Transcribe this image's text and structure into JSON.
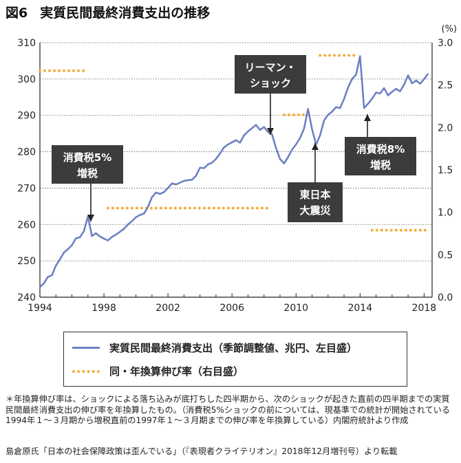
{
  "figure": {
    "number": "図6",
    "title": "実質民間最終消費支出の推移"
  },
  "legend": {
    "items": [
      {
        "label": "実質民間最終消費支出（季節調整値、兆円、左目盛）",
        "color": "#6e80c4",
        "style": "line"
      },
      {
        "label": "同・年換算伸び率（右目盛）",
        "color": "#f3ad3c",
        "style": "dotted"
      }
    ]
  },
  "note": "＊年換算伸び率は、ショックによる落ち込みが底打ちした四半期から、次のショックが起きた直前の四半期までの実質民間最終消費支出の伸び率を年換算したもの。（消費税5%ショックの前については、現基準での統計が開始されている1994年１～３月期から増税直前の1997年１～３月期までの伸び率を年換算している）内閣府統計より作成",
  "source": "島倉原氏「日本の社会保障政策は歪んでいる」（『表現者クライテリオン』2018年12月増刊号）より転載",
  "chart_data": {
    "type": "line",
    "x_ticks": [
      "1994",
      "1998",
      "2002",
      "2006",
      "2010",
      "2014",
      "2018"
    ],
    "y_left": {
      "range": [
        240,
        310
      ],
      "ticks": [
        "240",
        "250",
        "260",
        "270",
        "280",
        "290",
        "300",
        "310"
      ]
    },
    "y_right": {
      "unit": "(%)",
      "range": [
        0.0,
        3.0
      ],
      "ticks": [
        "0.0",
        "0.5",
        "1.0",
        "1.5",
        "2.0",
        "2.5",
        "3.0"
      ]
    },
    "grid": "dotted-horizontal",
    "series": [
      {
        "name": "実質民間最終消費支出（季節調整値、兆円、左目盛）",
        "axis": "left",
        "color": "#6e80c4",
        "points": [
          [
            1994.0,
            242.8
          ],
          [
            1994.25,
            243.8
          ],
          [
            1994.5,
            245.6
          ],
          [
            1994.75,
            246.0
          ],
          [
            1995.0,
            248.7
          ],
          [
            1995.25,
            250.4
          ],
          [
            1995.5,
            252.3
          ],
          [
            1995.75,
            253.2
          ],
          [
            1996.0,
            254.3
          ],
          [
            1996.25,
            256.2
          ],
          [
            1996.5,
            256.5
          ],
          [
            1996.75,
            258.2
          ],
          [
            1997.0,
            262.2
          ],
          [
            1997.25,
            256.8
          ],
          [
            1997.5,
            257.6
          ],
          [
            1997.75,
            256.7
          ],
          [
            1998.0,
            256.1
          ],
          [
            1998.25,
            255.6
          ],
          [
            1998.5,
            256.6
          ],
          [
            1998.75,
            257.2
          ],
          [
            1999.0,
            258.0
          ],
          [
            1999.25,
            258.8
          ],
          [
            1999.5,
            260.0
          ],
          [
            1999.75,
            260.9
          ],
          [
            2000.0,
            262.0
          ],
          [
            2000.25,
            262.6
          ],
          [
            2000.5,
            263.0
          ],
          [
            2000.75,
            264.8
          ],
          [
            2001.0,
            267.5
          ],
          [
            2001.25,
            268.8
          ],
          [
            2001.5,
            268.4
          ],
          [
            2001.75,
            268.9
          ],
          [
            2002.0,
            270.0
          ],
          [
            2002.25,
            271.3
          ],
          [
            2002.5,
            271.0
          ],
          [
            2002.75,
            271.5
          ],
          [
            2003.0,
            272.0
          ],
          [
            2003.25,
            272.2
          ],
          [
            2003.5,
            272.3
          ],
          [
            2003.75,
            273.4
          ],
          [
            2004.0,
            275.6
          ],
          [
            2004.25,
            275.5
          ],
          [
            2004.5,
            276.5
          ],
          [
            2004.75,
            277.0
          ],
          [
            2005.0,
            278.0
          ],
          [
            2005.25,
            279.5
          ],
          [
            2005.5,
            281.2
          ],
          [
            2005.75,
            282.0
          ],
          [
            2006.0,
            282.6
          ],
          [
            2006.25,
            283.2
          ],
          [
            2006.5,
            282.5
          ],
          [
            2006.75,
            284.5
          ],
          [
            2007.0,
            285.6
          ],
          [
            2007.25,
            286.5
          ],
          [
            2007.5,
            287.4
          ],
          [
            2007.75,
            286.0
          ],
          [
            2008.0,
            286.8
          ],
          [
            2008.25,
            285.4
          ],
          [
            2008.5,
            284.8
          ],
          [
            2008.75,
            281.0
          ],
          [
            2009.0,
            278.0
          ],
          [
            2009.25,
            276.8
          ],
          [
            2009.5,
            278.5
          ],
          [
            2009.75,
            280.6
          ],
          [
            2010.0,
            282.0
          ],
          [
            2010.25,
            283.8
          ],
          [
            2010.5,
            286.4
          ],
          [
            2010.75,
            291.8
          ],
          [
            2011.0,
            286.2
          ],
          [
            2011.25,
            282.0
          ],
          [
            2011.5,
            284.5
          ],
          [
            2011.75,
            288.6
          ],
          [
            2012.0,
            290.2
          ],
          [
            2012.25,
            291.0
          ],
          [
            2012.5,
            292.3
          ],
          [
            2012.75,
            292.0
          ],
          [
            2013.0,
            294.5
          ],
          [
            2013.25,
            297.7
          ],
          [
            2013.5,
            300.0
          ],
          [
            2013.75,
            301.2
          ],
          [
            2014.0,
            306.3
          ],
          [
            2014.25,
            292.0
          ],
          [
            2014.5,
            293.2
          ],
          [
            2014.75,
            294.6
          ],
          [
            2015.0,
            296.3
          ],
          [
            2015.25,
            296.0
          ],
          [
            2015.5,
            297.5
          ],
          [
            2015.75,
            295.5
          ],
          [
            2016.0,
            296.5
          ],
          [
            2016.25,
            297.3
          ],
          [
            2016.5,
            296.6
          ],
          [
            2016.75,
            298.5
          ],
          [
            2017.0,
            301.0
          ],
          [
            2017.25,
            298.8
          ],
          [
            2017.5,
            299.6
          ],
          [
            2017.75,
            298.7
          ],
          [
            2018.0,
            300.0
          ],
          [
            2018.25,
            301.5
          ]
        ]
      },
      {
        "name": "同・年換算伸び率（右目盛）",
        "axis": "right",
        "color": "#f3ad3c",
        "segments": [
          {
            "x": [
              1994.0,
              1997.0
            ],
            "value": 2.67
          },
          {
            "x": [
              1998.25,
              2008.25
            ],
            "value": 1.05
          },
          {
            "x": [
              2009.25,
              2010.75
            ],
            "value": 2.15
          },
          {
            "x": [
              2011.5,
              2013.75
            ],
            "value": 2.85
          },
          {
            "x": [
              2014.75,
              2018.25
            ],
            "value": 0.79
          }
        ]
      }
    ],
    "annotations": [
      {
        "lines": [
          "消費税5%",
          "増税"
        ],
        "target": [
          1997.0,
          262.2
        ]
      },
      {
        "lines": [
          "リーマン・",
          "ショック"
        ],
        "target": [
          2008.25,
          286.0
        ]
      },
      {
        "lines": [
          "東日本",
          "大震災"
        ],
        "target": [
          2011.25,
          282.0
        ]
      },
      {
        "lines": [
          "消費税8%",
          "増税"
        ],
        "target": [
          2014.0,
          292.0
        ]
      }
    ]
  }
}
